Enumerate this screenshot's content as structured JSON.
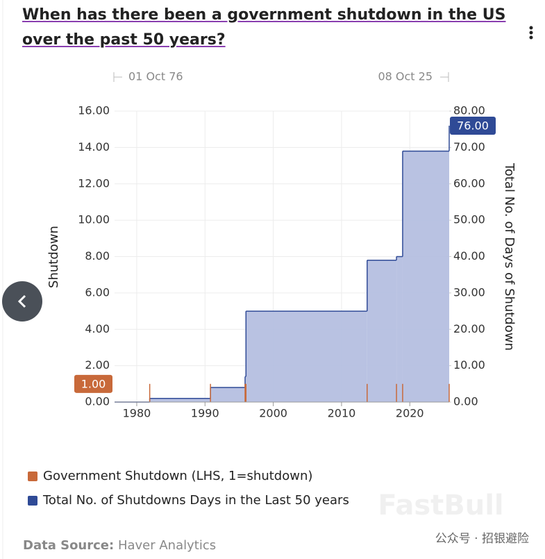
{
  "chart_data": {
    "type": "step-dual",
    "title": "When has there been a government shutdown in the US over the past 50 years?",
    "range_start": "01 Oct 76",
    "range_end": "08 Oct 25",
    "y_label": "Shutdown",
    "y2_label": "Total No. of Days of Shutdown",
    "xlim": [
      1976.75,
      2025.77
    ],
    "xticks": [
      1980,
      1990,
      2000,
      2010,
      2020
    ],
    "ylim": [
      0,
      16
    ],
    "yticks": [
      {
        "value": 0,
        "label": "0.00"
      },
      {
        "value": 2,
        "label": "2.00"
      },
      {
        "value": 4,
        "label": "4.00"
      },
      {
        "value": 6,
        "label": "6.00"
      },
      {
        "value": 8,
        "label": "8.00"
      },
      {
        "value": 10,
        "label": "10.00"
      },
      {
        "value": 12,
        "label": "12.00"
      },
      {
        "value": 14,
        "label": "14.00"
      },
      {
        "value": 16,
        "label": "16.00"
      }
    ],
    "y2lim": [
      0,
      80
    ],
    "y2ticks": [
      {
        "value": 0,
        "label": "0.00"
      },
      {
        "value": 10,
        "label": "10.00"
      },
      {
        "value": 20,
        "label": "20.00"
      },
      {
        "value": 30,
        "label": "30.00"
      },
      {
        "value": 40,
        "label": "40.00"
      },
      {
        "value": 50,
        "label": "50.00"
      },
      {
        "value": 60,
        "label": "60.00"
      },
      {
        "value": 70,
        "label": "70.00"
      },
      {
        "value": 80,
        "label": "80.00"
      }
    ],
    "grid": true,
    "series": [
      {
        "name": "Government Shutdown (LHS, 1=shutdown)",
        "color": "#c8693a",
        "style": "spike",
        "x": [
          1981.9,
          1990.8,
          1995.87,
          1996.0,
          2013.75,
          2018.05,
          2018.95,
          2025.77
        ],
        "values": [
          1,
          1,
          1,
          1,
          1,
          1,
          1,
          1
        ],
        "value_labels": [
          null,
          null,
          null,
          null,
          null,
          null,
          null,
          "1.00"
        ]
      },
      {
        "name": "Total No. of Shutdowns Days in the Last 50 years",
        "color": "#2f4a96",
        "style": "step",
        "axis": "y2",
        "x": [
          1976.75,
          1981.9,
          1990.8,
          1995.87,
          1996.0,
          2013.75,
          2018.05,
          2018.95,
          2025.77
        ],
        "values": [
          0,
          1,
          4,
          7,
          25,
          39,
          40,
          69,
          76
        ],
        "value_labels": [
          null,
          null,
          null,
          null,
          null,
          null,
          null,
          null,
          "76.00"
        ]
      }
    ],
    "source_label": "Data Source:",
    "source": "Haver Analytics",
    "watermark": "FastBull",
    "account": "公众号 · 招银避险"
  }
}
